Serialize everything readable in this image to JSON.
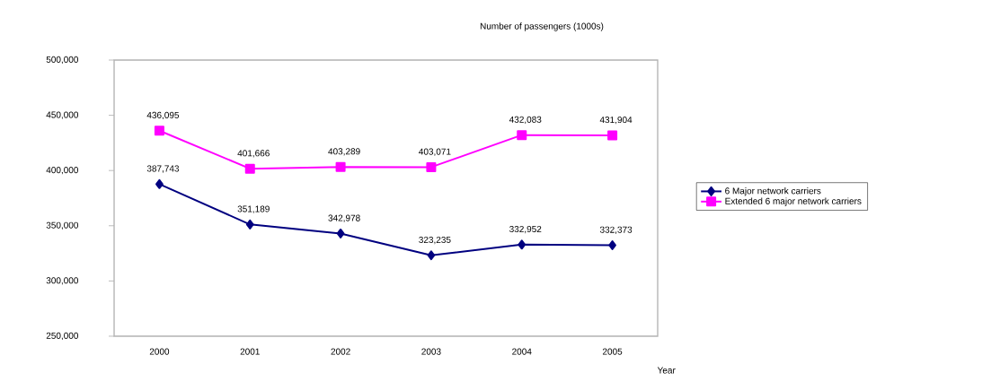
{
  "chart_data": {
    "type": "line",
    "title": "Number of passengers (1000s)",
    "xlabel": "Year",
    "categories": [
      "2000",
      "2001",
      "2002",
      "2003",
      "2004",
      "2005"
    ],
    "series": [
      {
        "name": "6 Major network carriers",
        "color": "#000080",
        "marker": "diamond",
        "values": [
          387743,
          351189,
          342978,
          323235,
          332952,
          332373
        ],
        "value_labels": [
          "387,743",
          "351,189",
          "342,978",
          "323,235",
          "332,952",
          "332,373"
        ]
      },
      {
        "name": "Extended 6 major network carriers",
        "color": "#ff00ff",
        "marker": "square",
        "values": [
          436095,
          401666,
          403289,
          403071,
          432083,
          431904
        ],
        "value_labels": [
          "436,095",
          "401,666",
          "403,289",
          "403,071",
          "432,083",
          "431,904"
        ]
      }
    ],
    "ylim": [
      250000,
      500000
    ],
    "yticks": [
      {
        "value": 250000,
        "label": "250,000"
      },
      {
        "value": 300000,
        "label": "300,000"
      },
      {
        "value": 350000,
        "label": "350,000"
      },
      {
        "value": 400000,
        "label": "400,000"
      },
      {
        "value": 450000,
        "label": "450,000"
      },
      {
        "value": 500000,
        "label": "500,000"
      }
    ],
    "grid": false,
    "legend": "right",
    "line_style": "solid"
  }
}
